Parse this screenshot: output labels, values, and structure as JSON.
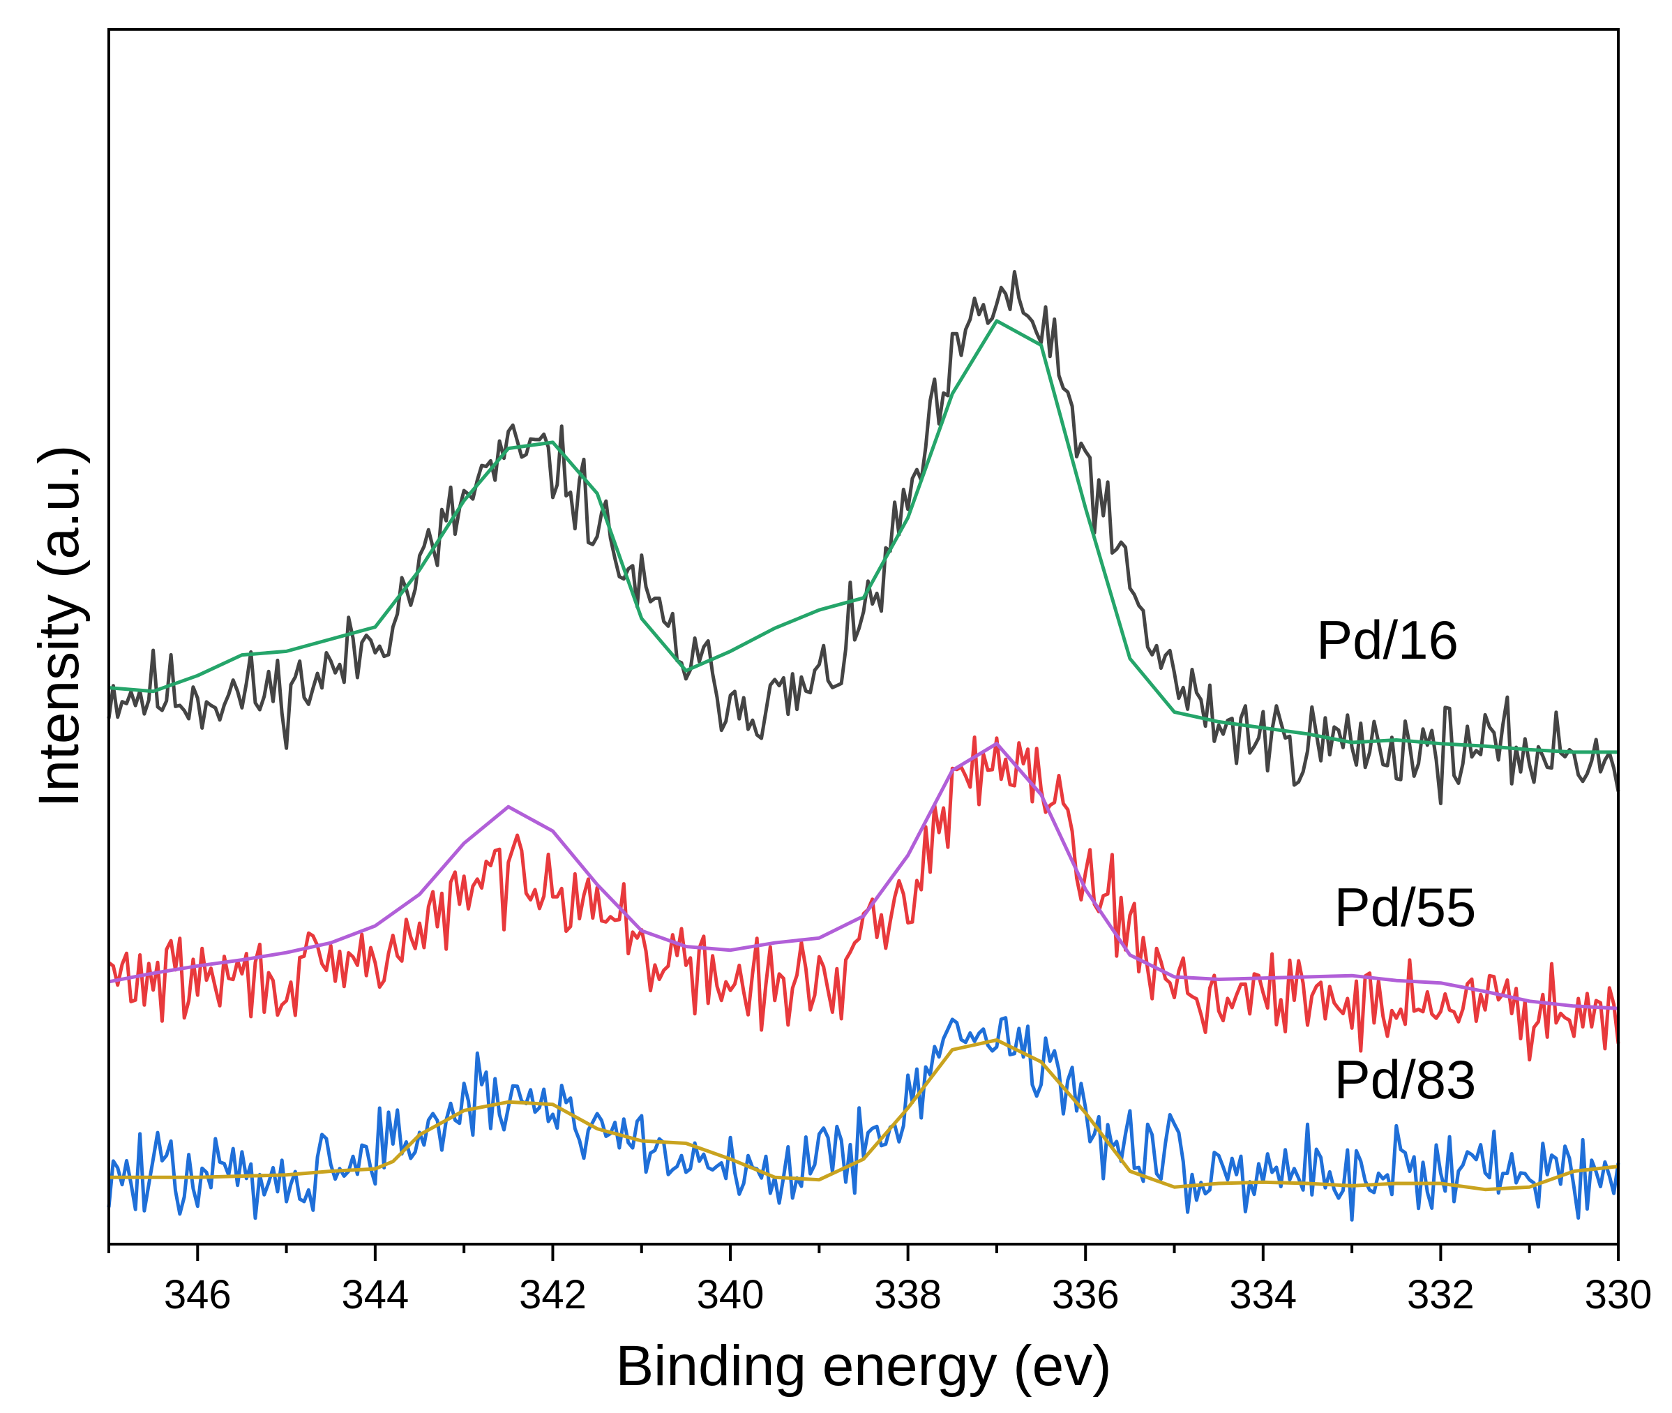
{
  "chart_data": {
    "type": "line",
    "title": "",
    "xlabel": "Binding energy (ev)",
    "ylabel": "Intensity (a.u.)",
    "xlim": [
      347,
      330
    ],
    "x_reversed": true,
    "ylim": [
      0,
      10
    ],
    "x_ticks": [
      346,
      344,
      342,
      340,
      338,
      336,
      334,
      332,
      330
    ],
    "x_minor_ticks": [
      347,
      345,
      343,
      341,
      339,
      337,
      335,
      333,
      331
    ],
    "y_tick_labels_shown": false,
    "grid": false,
    "series_labels": [
      {
        "text": "Pd/16",
        "x": 332.6,
        "y": 4.82
      },
      {
        "text": "Pd/55",
        "x": 332.4,
        "y": 2.62
      },
      {
        "text": "Pd/83",
        "x": 332.4,
        "y": 1.2
      }
    ],
    "series": [
      {
        "name": "Pd/16 raw",
        "kind": "raw",
        "color": "#444444",
        "baseline_left": 4.55,
        "baseline_right": 4.02,
        "peaks": [
          {
            "center": 342.3,
            "height": 2.1,
            "width": 1.05
          },
          {
            "center": 336.9,
            "height": 3.55,
            "width": 0.95
          }
        ],
        "noise": 0.22,
        "seed": 11
      },
      {
        "name": "Pd/16 fit",
        "kind": "fit",
        "color": "#25a56a",
        "x": [
          347,
          346.5,
          346,
          345.5,
          345,
          344.5,
          344,
          343.5,
          343,
          342.5,
          342,
          341.5,
          341,
          340.5,
          340,
          339.5,
          339,
          338.5,
          338,
          337.5,
          337,
          336.5,
          336,
          335.5,
          335,
          334.5,
          334,
          333.5,
          333,
          332.5,
          332,
          331.5,
          331,
          330.5,
          330
        ],
        "y": [
          4.58,
          4.55,
          4.68,
          4.85,
          4.88,
          4.98,
          5.08,
          5.55,
          6.12,
          6.55,
          6.6,
          6.18,
          5.15,
          4.72,
          4.88,
          5.07,
          5.22,
          5.32,
          5.98,
          7.0,
          7.6,
          7.4,
          6.06,
          4.82,
          4.38,
          4.3,
          4.25,
          4.2,
          4.13,
          4.15,
          4.12,
          4.1,
          4.07,
          4.05,
          4.05
        ]
      },
      {
        "name": "Pd/55 raw",
        "kind": "raw",
        "color": "#e8393c",
        "baseline_left": 2.2,
        "baseline_right": 1.95,
        "peaks": [
          {
            "center": 342.3,
            "height": 0.95,
            "width": 0.95
          },
          {
            "center": 336.9,
            "height": 2.02,
            "width": 0.85
          }
        ],
        "noise": 0.22,
        "seed": 29
      },
      {
        "name": "Pd/55 fit",
        "kind": "fit",
        "color": "#b15fd8",
        "x": [
          347,
          346.5,
          346,
          345.5,
          345,
          344.5,
          344,
          343.5,
          343,
          342.5,
          342,
          341.5,
          341,
          340.5,
          340,
          339.5,
          339,
          338.5,
          338,
          337.5,
          337,
          336.5,
          336,
          335.5,
          335,
          334.5,
          334,
          333.5,
          333,
          332.5,
          332,
          331.5,
          331,
          330.5,
          330
        ],
        "y": [
          2.16,
          2.23,
          2.29,
          2.34,
          2.4,
          2.48,
          2.62,
          2.88,
          3.3,
          3.6,
          3.4,
          2.96,
          2.58,
          2.45,
          2.42,
          2.48,
          2.52,
          2.7,
          3.2,
          3.9,
          4.12,
          3.7,
          2.92,
          2.38,
          2.2,
          2.18,
          2.19,
          2.2,
          2.21,
          2.17,
          2.15,
          2.08,
          2.0,
          1.96,
          1.94
        ]
      },
      {
        "name": "Pd/83 raw",
        "kind": "raw",
        "color": "#1f6fd8",
        "baseline_left": 0.55,
        "baseline_right": 0.62,
        "peaks": [
          {
            "center": 342.4,
            "height": 0.62,
            "width": 1.05
          },
          {
            "center": 337.1,
            "height": 1.15,
            "width": 0.85
          }
        ],
        "noise": 0.22,
        "seed": 47
      },
      {
        "name": "Pd/83 fit",
        "kind": "fit",
        "color": "#c9a31f",
        "x": [
          347,
          346.5,
          346,
          345.5,
          345,
          344.5,
          344,
          343.8,
          343.5,
          343,
          342.5,
          342,
          341.5,
          341,
          340.5,
          340,
          339.5,
          339,
          338.5,
          338,
          337.5,
          337,
          336.5,
          336,
          335.5,
          335,
          334.5,
          334,
          333.5,
          333,
          332.5,
          332,
          331.5,
          331,
          330.5,
          330
        ],
        "y": [
          0.55,
          0.55,
          0.55,
          0.56,
          0.57,
          0.6,
          0.62,
          0.68,
          0.9,
          1.1,
          1.17,
          1.15,
          0.95,
          0.85,
          0.83,
          0.7,
          0.55,
          0.53,
          0.7,
          1.12,
          1.6,
          1.68,
          1.5,
          1.08,
          0.6,
          0.47,
          0.5,
          0.51,
          0.5,
          0.48,
          0.5,
          0.5,
          0.45,
          0.47,
          0.6,
          0.64
        ]
      }
    ]
  }
}
